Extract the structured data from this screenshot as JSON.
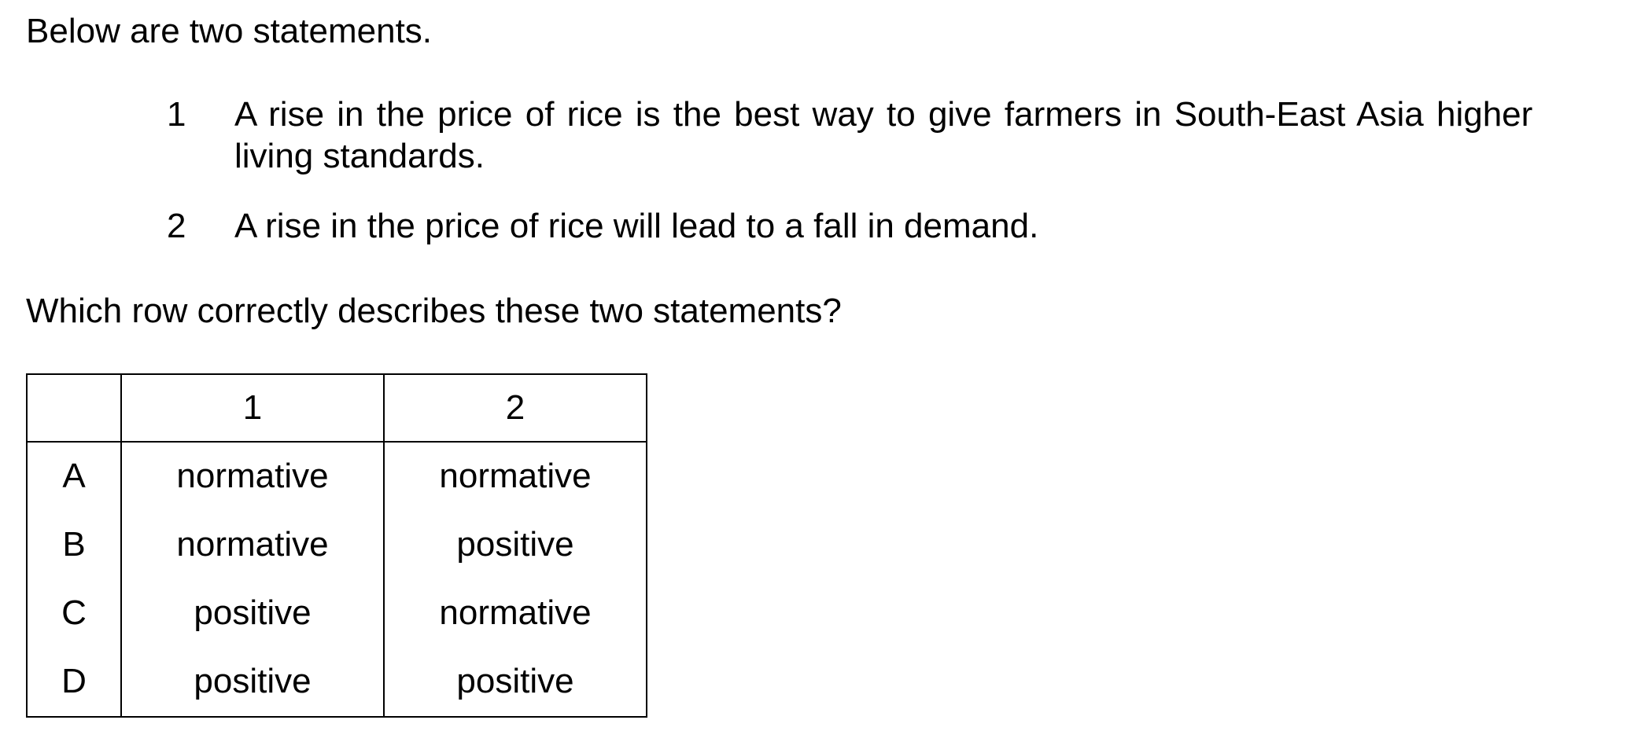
{
  "intro": "Below are two statements.",
  "statements": [
    {
      "number": "1",
      "lines": [
        "A rise in the price of rice is the best way to give farmers in South-East Asia higher",
        "living standards."
      ]
    },
    {
      "number": "2",
      "lines": [
        "A rise in the price of rice will lead to a fall in demand."
      ]
    }
  ],
  "question": "Which row correctly describes these two statements?",
  "table": {
    "headers": [
      "",
      "1",
      "2"
    ],
    "rows": [
      {
        "key": "A",
        "col1": "normative",
        "col2": "normative"
      },
      {
        "key": "B",
        "col1": "normative",
        "col2": "positive"
      },
      {
        "key": "C",
        "col1": "positive",
        "col2": "normative"
      },
      {
        "key": "D",
        "col1": "positive",
        "col2": "positive"
      }
    ]
  }
}
